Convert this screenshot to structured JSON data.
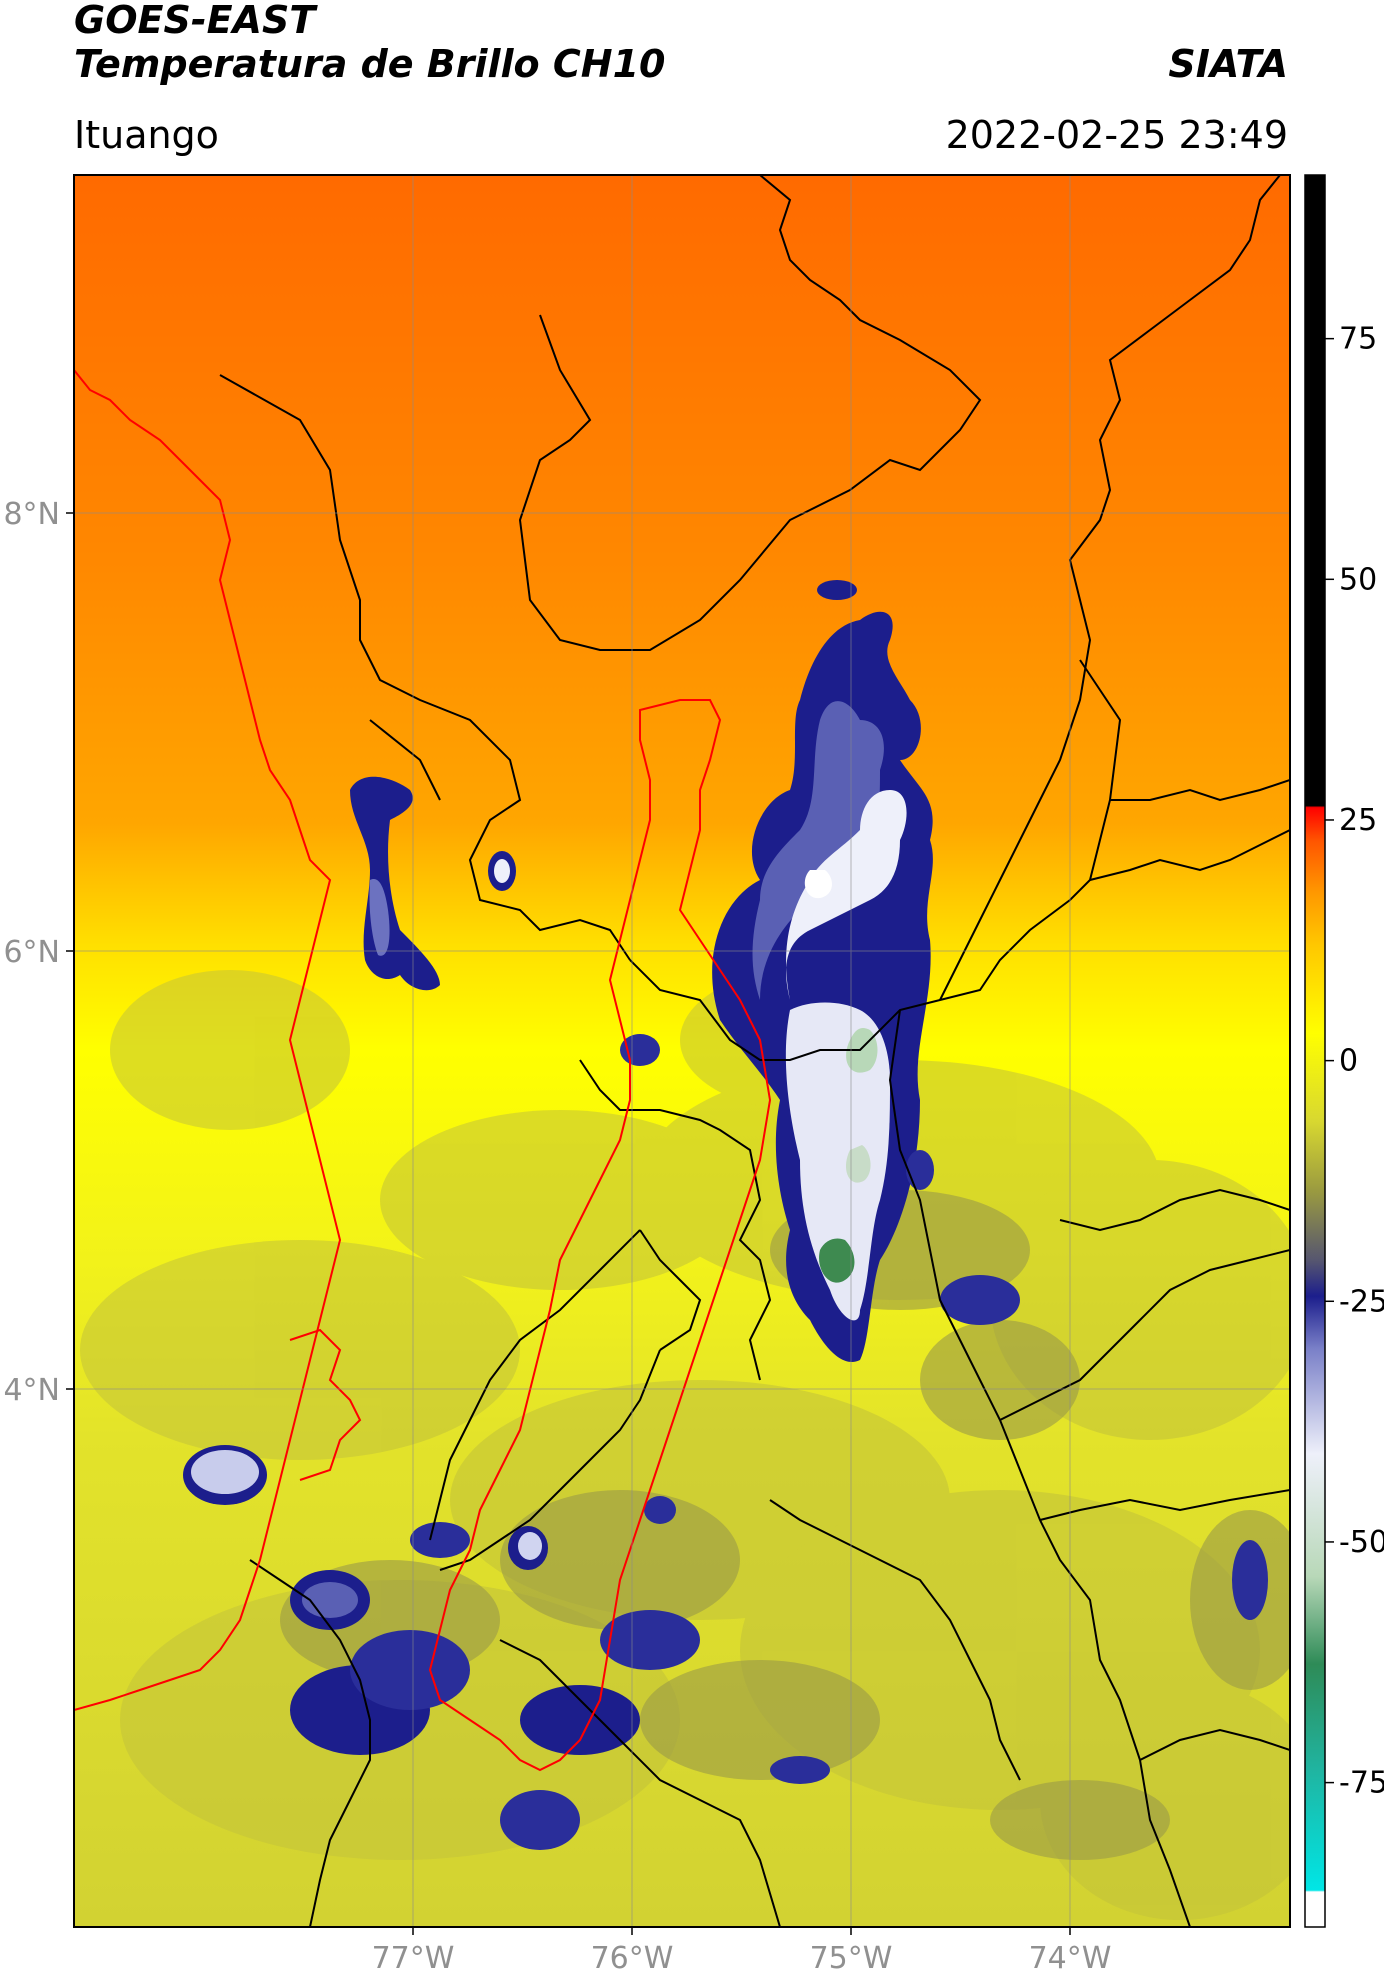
{
  "header": {
    "title_line1": "GOES-EAST",
    "title_line2": "Temperatura de Brillo CH10",
    "brand": "SIATA",
    "location": "Ituango",
    "timestamp": "2022-02-25 23:49"
  },
  "map": {
    "lat_labels": [
      "8°N",
      "6°N",
      "4°N"
    ],
    "lon_labels": [
      "77°W",
      "76°W",
      "75°W",
      "74°W"
    ],
    "colors": {
      "warm_top": "#ff6a00",
      "warm_mid": "#ff9a00",
      "yellow": "#ffff00",
      "olive": "#c8c832",
      "cold_blue": "#1c1e8c",
      "cold_white": "#eef0fa",
      "border_black": "#000000",
      "border_red": "#ff0000"
    }
  },
  "colorbar": {
    "ticks": [
      "75",
      "50",
      "25",
      "0",
      "-25",
      "-50",
      "-75"
    ],
    "tick_values": [
      75,
      50,
      25,
      0,
      -25,
      -50,
      -75
    ],
    "range": [
      -90,
      92
    ],
    "colors": [
      "#ffffff",
      "#00e6e6",
      "#2e8b57",
      "#eef0fa",
      "#1c1e8c",
      "#9a9a40",
      "#ffff00",
      "#ff9900",
      "#ff0000",
      "#000000"
    ]
  }
}
